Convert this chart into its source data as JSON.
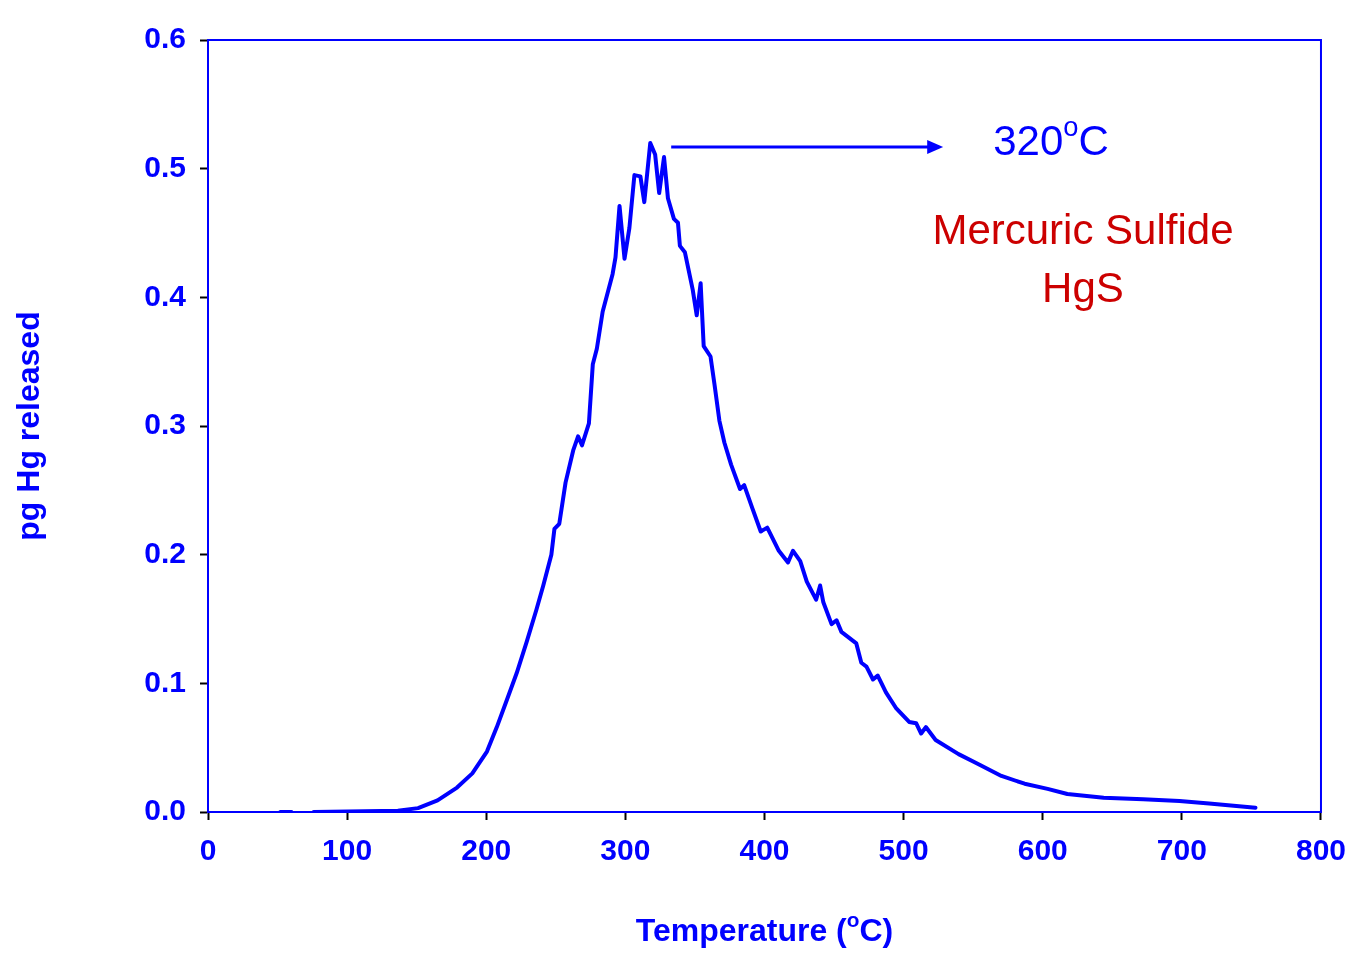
{
  "chart_data": {
    "type": "line",
    "xlabel": "Temperature ($^{o}$C)",
    "ylabel": "pg Hg released",
    "xlim": [
      0,
      800
    ],
    "xticks": [
      0,
      100,
      200,
      300,
      400,
      500,
      600,
      700,
      800
    ],
    "ylim": [
      0,
      0.6
    ],
    "yticks": [
      {
        "value": 0,
        "label": "0.0"
      },
      0.1,
      0.2,
      0.3,
      0.4,
      0.5,
      0.6
    ],
    "grid": false,
    "legend": false,
    "marker": "none",
    "line_style": "solid",
    "annotations": [
      "320$^{o}$C",
      "Mercuric Sulfide\nHgS"
    ],
    "series": [
      {
        "color": "#0000ff",
        "x": [
          52,
          60,
          68,
          76,
          136.5,
          151,
          165,
          179,
          190,
          200.5,
          207.6,
          214.8,
          221.9,
          229,
          236,
          241,
          246.8,
          249,
          252.5,
          257,
          262.5,
          266,
          268.8,
          273.8,
          276.6,
          279.5,
          283.7,
          290.8,
          292.9,
          295.8,
          299.4,
          302.9,
          306.5,
          310.8,
          313.6,
          317.9,
          321.4,
          324.3,
          327.8,
          330.6,
          334.9,
          337.8,
          339.2,
          342.8,
          348.4,
          351.3,
          354.1,
          356.3,
          361.2,
          364.1,
          367.6,
          371.2,
          376,
          382.4,
          385.4,
          391.3,
          397.3,
          402,
          410.3,
          416.9,
          420.5,
          425.7,
          430.4,
          437.1,
          440,
          442.3,
          448.2,
          451.8,
          455.3,
          466,
          469.6,
          473.3,
          478,
          481.4,
          487.3,
          494.4,
          504,
          509,
          512.6,
          516,
          523,
          539.5,
          556,
          570.3,
          587,
          603.5,
          617.7,
          643.8,
          672.2,
          698.3,
          719.6,
          752.9
        ],
        "values": [
          0,
          0,
          null,
          0,
          0.001,
          0.003,
          0.009,
          0.019,
          0.03,
          0.047,
          0.066,
          0.087,
          0.108,
          0.132,
          0.157,
          0.176,
          0.2,
          0.22,
          0.224,
          0.256,
          0.281,
          0.292,
          0.285,
          0.302,
          0.348,
          0.36,
          0.389,
          0.418,
          0.431,
          0.471,
          0.43,
          0.454,
          0.495,
          0.494,
          0.474,
          0.52,
          0.511,
          0.481,
          0.509,
          0.477,
          0.461,
          0.458,
          0.44,
          0.435,
          0.406,
          0.386,
          0.411,
          0.362,
          0.354,
          0.332,
          0.304,
          0.287,
          0.27,
          0.251,
          0.254,
          0.236,
          0.218,
          0.221,
          0.203,
          0.194,
          0.203,
          0.195,
          0.179,
          0.165,
          0.176,
          0.163,
          0.146,
          0.149,
          0.14,
          0.131,
          0.116,
          0.113,
          0.103,
          0.106,
          0.093,
          0.081,
          0.07,
          0.069,
          0.061,
          0.066,
          0.056,
          0.045,
          0.036,
          0.028,
          0.022,
          0.018,
          0.014,
          0.011,
          0.0099,
          0.0086,
          0.0066,
          0.0033
        ]
      }
    ]
  }
}
